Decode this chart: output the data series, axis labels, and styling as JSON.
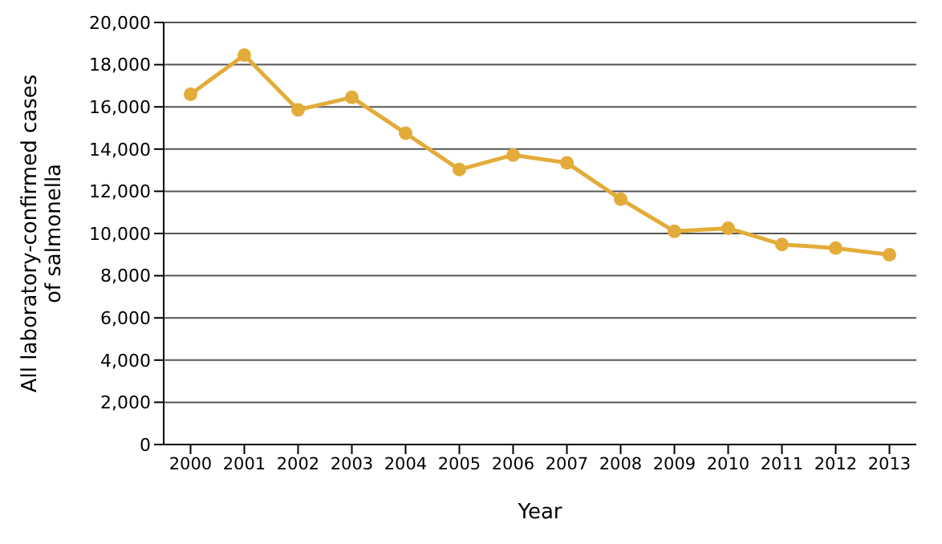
{
  "chart_data": {
    "type": "line",
    "xlabel": "Year",
    "ylabel": "All laboratory-confirmed cases of salmonella",
    "categories": [
      "2000",
      "2001",
      "2002",
      "2003",
      "2004",
      "2005",
      "2006",
      "2007",
      "2008",
      "2009",
      "2010",
      "2011",
      "2012",
      "2013"
    ],
    "series": [
      {
        "color": "#e3ac3a",
        "values": [
          16600,
          18450,
          15860,
          16450,
          14750,
          13030,
          13720,
          13350,
          11630,
          10100,
          10250,
          9480,
          9310,
          8990
        ]
      }
    ],
    "ylim": [
      0,
      20000
    ],
    "yticks": [
      {
        "value": 0,
        "label": "0"
      },
      {
        "value": 2000,
        "label": "2,000"
      },
      {
        "value": 4000,
        "label": "4,000"
      },
      {
        "value": 6000,
        "label": "6,000"
      },
      {
        "value": 8000,
        "label": "8,000"
      },
      {
        "value": 10000,
        "label": "10,000"
      },
      {
        "value": 12000,
        "label": "12,000"
      },
      {
        "value": 14000,
        "label": "14,000"
      },
      {
        "value": 16000,
        "label": "16,000"
      },
      {
        "value": 18000,
        "label": "18,000"
      },
      {
        "value": 20000,
        "label": "20,000"
      }
    ],
    "grid": "y",
    "marker": "circle",
    "legend": false
  }
}
